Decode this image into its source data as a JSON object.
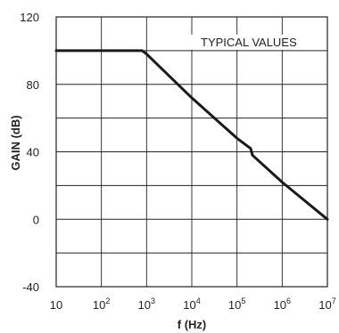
{
  "chart_data": {
    "type": "line",
    "xlabel": "f (Hz)",
    "ylabel": "GAIN (dB)",
    "x_scale": "log",
    "xlim": [
      10,
      10000000
    ],
    "ylim": [
      -40,
      120
    ],
    "grid": true,
    "x_ticks": [
      {
        "base": "10",
        "exp": ""
      },
      {
        "base": "10",
        "exp": "2"
      },
      {
        "base": "10",
        "exp": "3"
      },
      {
        "base": "10",
        "exp": "4"
      },
      {
        "base": "10",
        "exp": "5"
      },
      {
        "base": "10",
        "exp": "6"
      },
      {
        "base": "10",
        "exp": "7"
      }
    ],
    "y_ticks": [
      "-40",
      "0",
      "40",
      "80",
      "120"
    ],
    "annotation": "TYPICAL VALUES",
    "series": [
      {
        "x": [
          10,
          100,
          800,
          1000,
          10000,
          100000,
          200000,
          220000,
          1000000,
          10000000
        ],
        "y": [
          100,
          100,
          100,
          98,
          72,
          48,
          42,
          38,
          22,
          0
        ]
      }
    ],
    "colors": {
      "line": "#1a1a1a",
      "grid": "#222222",
      "axis": "#222222"
    }
  }
}
